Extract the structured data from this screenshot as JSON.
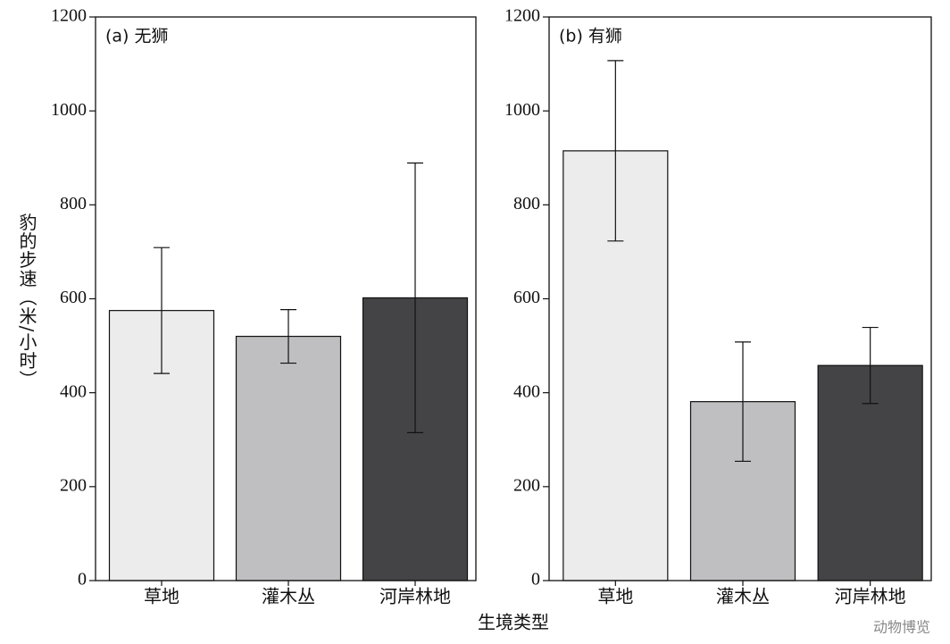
{
  "chart_data": [
    {
      "type": "bar",
      "title": "(a) 无狮",
      "categories": [
        "草地",
        "灌木丛",
        "河岸林地"
      ],
      "values": [
        575,
        520,
        602
      ],
      "errors": [
        134,
        57,
        287
      ],
      "colors": [
        "#ececec",
        "#bfbfc1",
        "#444446"
      ],
      "ylim": [
        0,
        1200
      ],
      "yticks": [
        0,
        200,
        400,
        600,
        800,
        1000,
        1200
      ]
    },
    {
      "type": "bar",
      "title": "(b) 有狮",
      "categories": [
        "草地",
        "灌木丛",
        "河岸林地"
      ],
      "values": [
        915,
        381,
        458
      ],
      "errors": [
        192,
        127,
        81
      ],
      "colors": [
        "#ececec",
        "#bfbfc1",
        "#444446"
      ],
      "ylim": [
        0,
        1200
      ],
      "yticks": [
        0,
        200,
        400,
        600,
        800,
        1000,
        1200
      ]
    }
  ],
  "ylabel": "豹的步速（米/小时）",
  "xlabel": "生境类型",
  "watermark": "动物博览"
}
